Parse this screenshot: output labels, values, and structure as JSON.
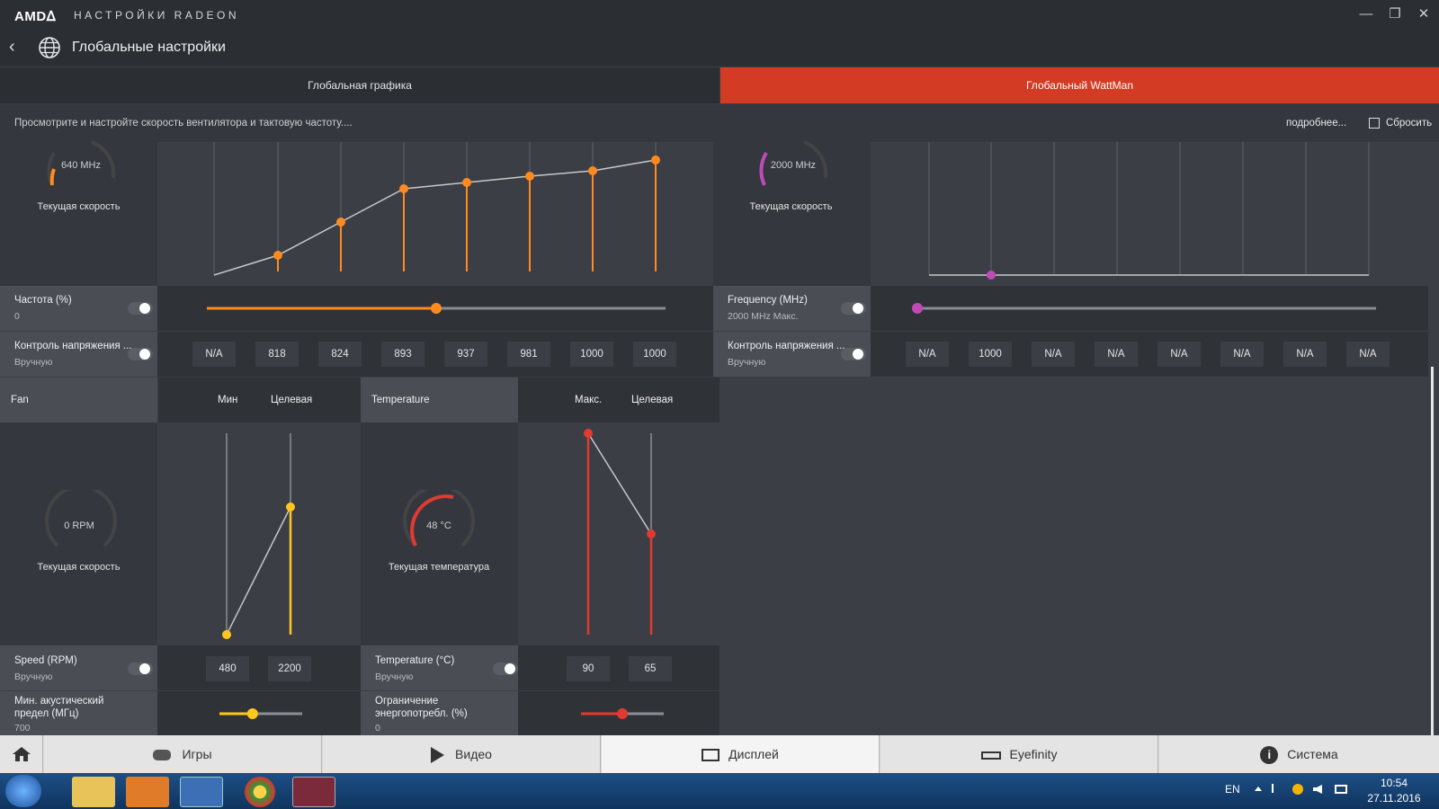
{
  "app": {
    "logo": "AMDᐃ",
    "title": "НАСТРОЙКИ RADEON",
    "window": {
      "minimize": "—",
      "restore": "❐",
      "close": "✕"
    }
  },
  "header": {
    "title": "Глобальные настройки"
  },
  "tabs": [
    {
      "label": "Глобальная графика",
      "active": false
    },
    {
      "label": "Глобальный WattMan",
      "active": true
    }
  ],
  "description": {
    "text": "Просмотрите и настройте скорость вентилятора и тактовую частоту....",
    "more": "подробнее...",
    "reset": "Сбросить"
  },
  "colors": {
    "accent": "#d33b24",
    "gpu": "#ff8a1f",
    "memory": "#bf4ab8",
    "fan": "#ffc61f",
    "temp": "#e03a33"
  },
  "gpu": {
    "gauge_value": "640 MHz",
    "gauge_label": "Текущая скорость",
    "frequency": {
      "title": "Частота (%)",
      "sub": "0",
      "slider_fraction": 0.5
    },
    "voltage": {
      "title": "Контроль напряжения ...",
      "sub": "Вручную"
    },
    "states": [
      "N/A",
      "818",
      "824",
      "893",
      "937",
      "981",
      "1000",
      "1000"
    ]
  },
  "memory": {
    "gauge_value": "2000 MHz",
    "gauge_label": "Текущая скорость",
    "frequency": {
      "title": "Frequency (MHz)",
      "sub": "2000 MHz Макс.",
      "slider_fraction": 0.0
    },
    "voltage": {
      "title": "Контроль напряжения ...",
      "sub": "Вручную"
    },
    "states": [
      "N/A",
      "1000",
      "N/A",
      "N/A",
      "N/A",
      "N/A",
      "N/A",
      "N/A"
    ]
  },
  "fan": {
    "header": "Fan",
    "col_min": "Мин",
    "col_target": "Целевая",
    "gauge_value": "0 RPM",
    "gauge_label": "Текущая скорость",
    "speed": {
      "title": "Speed (RPM)",
      "sub": "Вручную"
    },
    "values": [
      "480",
      "2200"
    ],
    "acoustic": {
      "title_line1": "Мин. акустический",
      "title_line2": "предел (МГц)",
      "sub": "700",
      "slider_fraction": 0.4
    }
  },
  "temperature": {
    "header": "Temperature",
    "col_max": "Макс.",
    "col_target": "Целевая",
    "gauge_value": "48 °C",
    "gauge_label": "Текущая температура",
    "temp": {
      "title": "Temperature (°C)",
      "sub": "Вручную"
    },
    "values": [
      "90",
      "65"
    ],
    "power": {
      "title_line1": "Ограничение",
      "title_line2": "энергопотребл. (%)",
      "sub": "0",
      "slider_fraction": 0.5
    }
  },
  "nav": [
    {
      "label": "Игры",
      "icon": "gamepad-icon"
    },
    {
      "label": "Видео",
      "icon": "play-icon"
    },
    {
      "label": "Дисплей",
      "icon": "monitor-icon"
    },
    {
      "label": "Eyefinity",
      "icon": "eyefinity-icon"
    },
    {
      "label": "Система",
      "icon": "info-icon"
    }
  ],
  "taskbar": {
    "lang": "EN",
    "time": "10:54",
    "date": "27.11.2016"
  }
}
